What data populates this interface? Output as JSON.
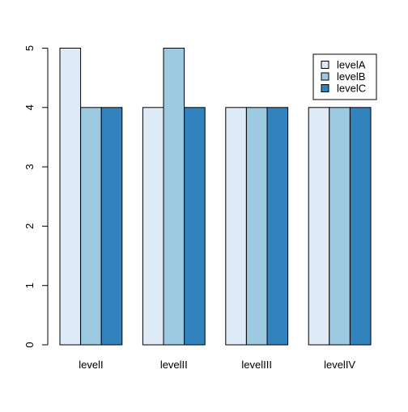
{
  "chart_data": {
    "type": "bar",
    "categories": [
      "levelI",
      "levelII",
      "levelIII",
      "levelIV"
    ],
    "series": [
      {
        "name": "levelA",
        "values": [
          5,
          4,
          4,
          4
        ],
        "color": "#deebf7"
      },
      {
        "name": "levelB",
        "values": [
          4,
          5,
          4,
          4
        ],
        "color": "#9ecae1"
      },
      {
        "name": "levelC",
        "values": [
          4,
          4,
          4,
          4
        ],
        "color": "#3182bd"
      }
    ],
    "title": "",
    "xlabel": "",
    "ylabel": "",
    "ylim": [
      0,
      5
    ],
    "yticks": [
      0,
      1,
      2,
      3,
      4,
      5
    ],
    "grid": false,
    "legend": {
      "position": "top-right",
      "entries": [
        "levelA",
        "levelB",
        "levelC"
      ]
    }
  }
}
